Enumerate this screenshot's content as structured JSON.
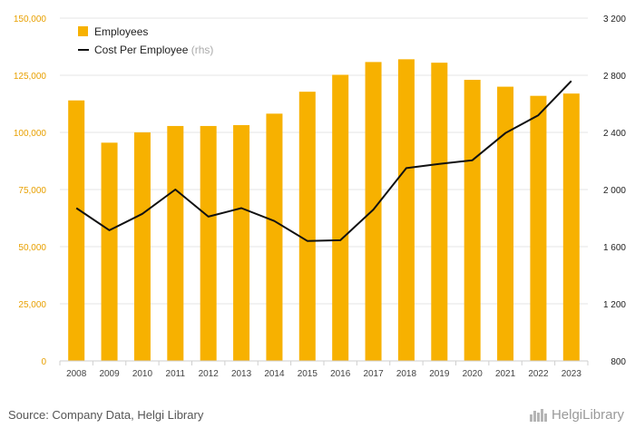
{
  "chart_data": {
    "type": "bar",
    "categories": [
      "2008",
      "2009",
      "2010",
      "2011",
      "2012",
      "2013",
      "2014",
      "2015",
      "2016",
      "2017",
      "2018",
      "2019",
      "2020",
      "2021",
      "2022",
      "2023"
    ],
    "series": [
      {
        "name": "Employees",
        "type": "bar",
        "axis": "left",
        "color": "#f7b100",
        "values": [
          114000,
          95500,
          100000,
          102800,
          102800,
          103200,
          108200,
          117800,
          125200,
          130800,
          132000,
          130500,
          123000,
          120000,
          116000,
          117000
        ]
      },
      {
        "name": "Cost Per Employee",
        "name_suffix": "(rhs)",
        "type": "line",
        "axis": "right",
        "color": "#111111",
        "values": [
          1870,
          1715,
          1830,
          2000,
          1810,
          1870,
          1780,
          1640,
          1645,
          1860,
          2150,
          2180,
          2205,
          2395,
          2520,
          2760
        ]
      }
    ],
    "y_left": {
      "ylim": [
        0,
        150000
      ],
      "ticks": [
        0,
        25000,
        50000,
        75000,
        100000,
        125000,
        150000
      ],
      "tick_labels": [
        "0",
        "25,000",
        "50,000",
        "75,000",
        "100,000",
        "125,000",
        "150,000"
      ],
      "tick_color": "#e8a000"
    },
    "y_right": {
      "ylim": [
        800,
        3200
      ],
      "ticks": [
        800,
        1200,
        1600,
        2000,
        2400,
        2800,
        3200
      ],
      "tick_labels": [
        "800",
        "1 200",
        "1 600",
        "2 000",
        "2 400",
        "2 800",
        "3 200"
      ]
    },
    "grid": true,
    "legend_position": "top-left"
  },
  "footer": {
    "source": "Source: Company Data, Helgi Library",
    "logo_text": "HelgiLibrary"
  }
}
